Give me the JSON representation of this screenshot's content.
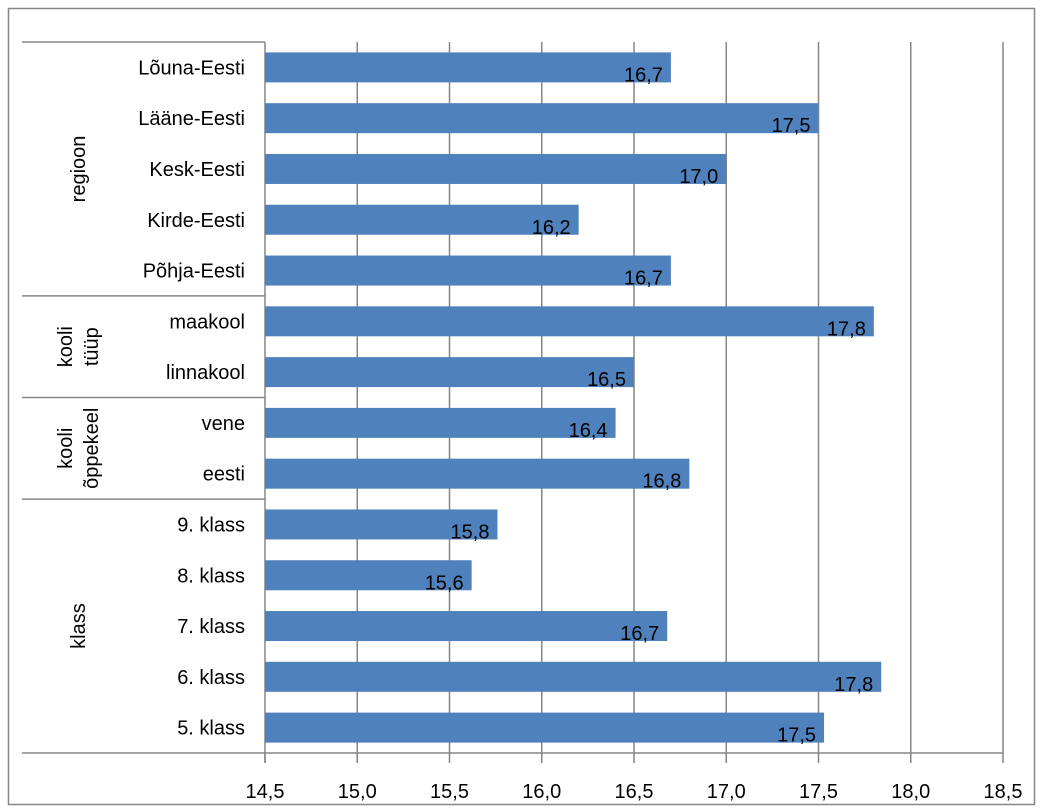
{
  "chart_data": {
    "type": "bar",
    "orientation": "horizontal",
    "title": "",
    "xlabel": "",
    "ylabel": "",
    "xlim": [
      14.5,
      18.5
    ],
    "x_ticks": [
      "14,5",
      "15,0",
      "15,5",
      "16,0",
      "16,5",
      "17,0",
      "17,5",
      "18,0",
      "18,5"
    ],
    "x_tick_values": [
      14.5,
      15.0,
      15.5,
      16.0,
      16.5,
      17.0,
      17.5,
      18.0,
      18.5
    ],
    "grid": "vertical",
    "legend": "none",
    "bar_color": "#4F81BD",
    "categories": [
      "Lõuna-Eesti",
      "Lääne-Eesti",
      "Kesk-Eesti",
      "Kirde-Eesti",
      "Põhja-Eesti",
      "maakool",
      "linnakool",
      "vene",
      "eesti",
      "9. klass",
      "8. klass",
      "7. klass",
      "6. klass",
      "5. klass"
    ],
    "values": [
      16.7,
      17.5,
      17.0,
      16.2,
      16.7,
      17.8,
      16.5,
      16.4,
      16.8,
      15.76,
      15.62,
      16.68,
      17.84,
      17.53
    ],
    "data_labels": [
      "16,7",
      "17,5",
      "17,0",
      "16,2",
      "16,7",
      "17,8",
      "16,5",
      "16,4",
      "16,8",
      "15,8",
      "15,6",
      "16,7",
      "17,8",
      "17,5"
    ],
    "groups": [
      {
        "lines": [
          "regioon"
        ],
        "start": 0,
        "count": 5
      },
      {
        "lines": [
          "kooli",
          "tüüp"
        ],
        "start": 5,
        "count": 2
      },
      {
        "lines": [
          "kooli",
          "õppekeel"
        ],
        "start": 7,
        "count": 2
      },
      {
        "lines": [
          "klass"
        ],
        "start": 9,
        "count": 5
      }
    ]
  }
}
